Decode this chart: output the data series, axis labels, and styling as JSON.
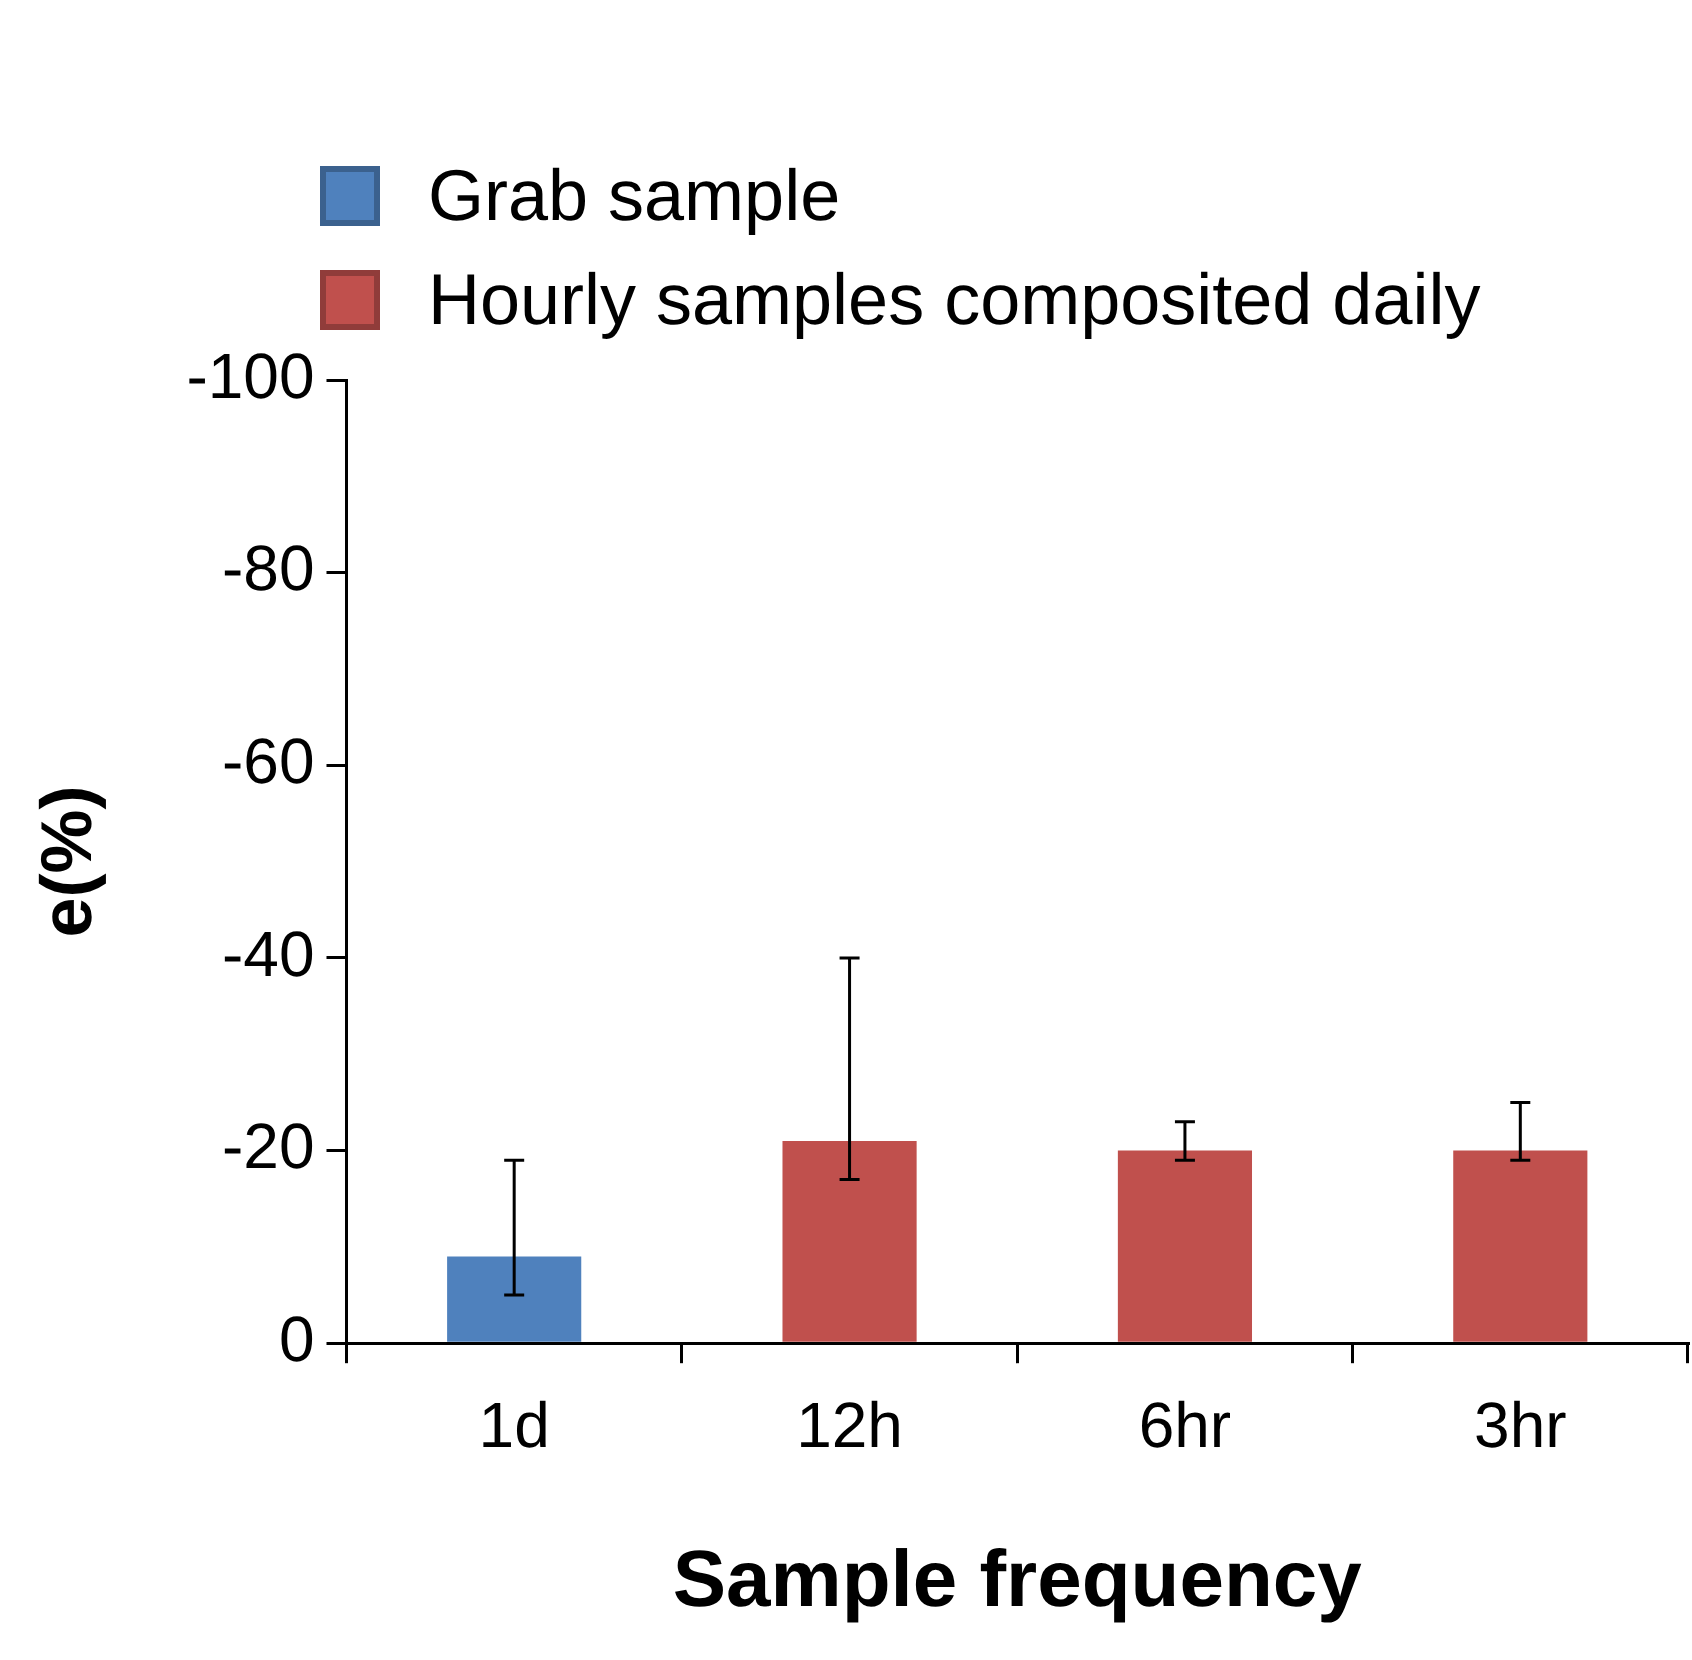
{
  "chart_data": {
    "type": "bar",
    "xlabel": "Sample frequency",
    "ylabel": "e(%)",
    "categories": [
      "1d",
      "12h",
      "6hr",
      "3hr"
    ],
    "series": [
      {
        "name": "Grab sample",
        "color": "#4f81bd",
        "values": [
          -9,
          null,
          null,
          null
        ],
        "errors": [
          [
            -19,
            -5
          ],
          null,
          null,
          null
        ]
      },
      {
        "name": "Hourly samples composited daily",
        "color": "#c0504d",
        "values": [
          null,
          -21,
          -20,
          -20
        ],
        "errors": [
          null,
          [
            -40,
            -17
          ],
          [
            -23,
            -19
          ],
          [
            -25,
            -19
          ]
        ]
      }
    ],
    "ylim": [
      0,
      -100
    ],
    "yticks": [
      0,
      -20,
      -40,
      -60,
      -80,
      -100
    ],
    "legend": "top left"
  }
}
